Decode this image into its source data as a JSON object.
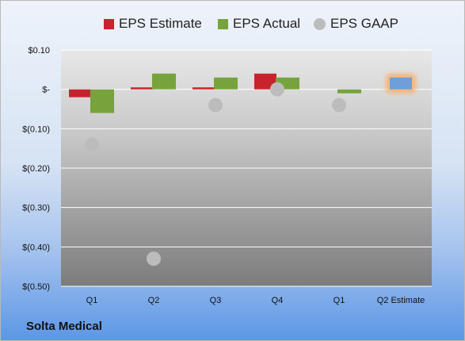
{
  "company": "Solta Medical",
  "colors": {
    "estimate": "#c8232c",
    "actual": "#77a33d",
    "gaap": "#bcbcbc",
    "projected": "#6f9fd8",
    "projected_glow": "#f5b57a"
  },
  "chart_data": {
    "type": "bar",
    "categories": [
      "Q1",
      "Q2",
      "Q3",
      "Q4",
      "Q1",
      "Q2 Estimate"
    ],
    "series": [
      {
        "name": "EPS Estimate",
        "values": [
          -0.02,
          0.005,
          0.005,
          0.04,
          null,
          0.03
        ]
      },
      {
        "name": "EPS Actual",
        "values": [
          -0.06,
          0.04,
          0.03,
          0.03,
          -0.01,
          null
        ]
      },
      {
        "name": "EPS GAAP",
        "values": [
          -0.14,
          -0.43,
          -0.04,
          0.0,
          -0.04,
          null
        ]
      }
    ],
    "ylim": [
      -0.5,
      0.1
    ],
    "yticks": [
      0.1,
      0.0,
      -0.1,
      -0.2,
      -0.3,
      -0.4,
      -0.5
    ],
    "ytick_labels": [
      "$0.10",
      "$-",
      "$(0.10)",
      "$(0.20)",
      "$(0.30)",
      "$(0.40)",
      "$(0.50)"
    ],
    "grid": true,
    "legend": "top"
  }
}
